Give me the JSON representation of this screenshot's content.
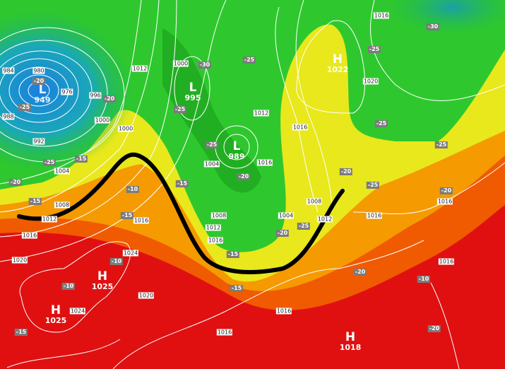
{
  "map": {
    "colors": {
      "low_blue": "#1f8fd8",
      "green_dark": "#1fa81f",
      "green": "#2ec82e",
      "yellow": "#e6ec1a",
      "orange": "#f5a000",
      "orange_red": "#f06000",
      "red": "#e01010",
      "isobar": "#ffffff",
      "trough_line": "#000000",
      "temp_label_bg": "#7b7b7b"
    },
    "pressure_centers": [
      {
        "type": "L",
        "value": "949"
      },
      {
        "type": "L",
        "value": "995"
      },
      {
        "type": "L",
        "value": "989"
      },
      {
        "type": "H",
        "value": "1022"
      },
      {
        "type": "H",
        "value": "1025"
      },
      {
        "type": "H",
        "value": "1025"
      },
      {
        "type": "H",
        "value": "1018"
      }
    ],
    "isobar_labels": [
      "984",
      "980",
      "976",
      "988",
      "992",
      "996",
      "1000",
      "1000",
      "1004",
      "1008",
      "1012",
      "1012",
      "1016",
      "1020",
      "1024",
      "1024",
      "1020",
      "1012",
      "1008",
      "1000",
      "1004",
      "1012",
      "1016",
      "1016",
      "1020",
      "1016",
      "1016",
      "1012",
      "1008",
      "1004",
      "1016",
      "1016",
      "1016",
      "1016",
      "1016",
      "1016"
    ],
    "temperature_labels": [
      "-20",
      "-25",
      "-20",
      "-15",
      "-25",
      "-15",
      "-20",
      "-30",
      "-25",
      "-25",
      "-25",
      "-30",
      "-25",
      "-25",
      "-25",
      "-20",
      "-20",
      "-20",
      "-15",
      "-15",
      "-10",
      "-10",
      "-10",
      "-15",
      "-15",
      "-10",
      "-20",
      "-20",
      "-25",
      "-15",
      "-25",
      "-20"
    ]
  }
}
